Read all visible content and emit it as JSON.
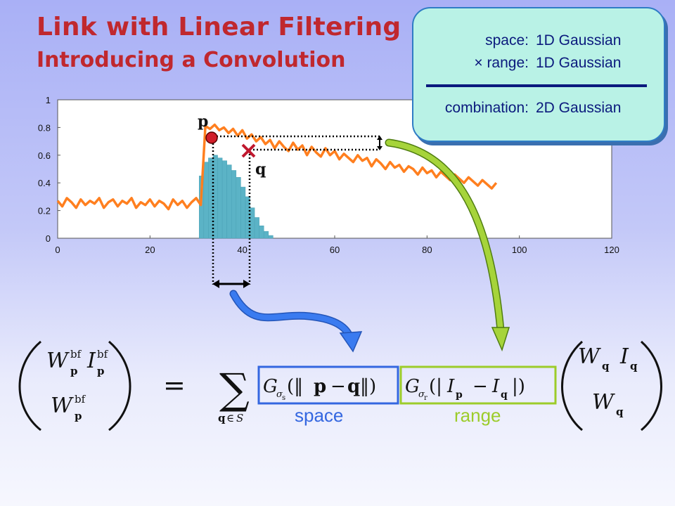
{
  "slide": {
    "title": "Link with Linear Filtering",
    "subtitle": "Introducing a Convolution"
  },
  "callout": {
    "rows": [
      {
        "label": "space:",
        "value": "1D Gaussian"
      },
      {
        "label": "× range:",
        "value": "1D Gaussian"
      },
      {
        "label": "combination:",
        "value": "2D Gaussian"
      }
    ]
  },
  "chart_data": {
    "type": "line",
    "xlim": [
      0,
      120
    ],
    "ylim": [
      0,
      1
    ],
    "x_ticks": [
      "0",
      "20",
      "40",
      "60",
      "80",
      "100",
      "120"
    ],
    "y_ticks": [
      "0",
      "0.2",
      "0.4",
      "0.6",
      "0.8",
      "1"
    ],
    "series": [
      {
        "kind": "line",
        "color": "#ff7f1f",
        "x": [
          0,
          1,
          2,
          3,
          4,
          5,
          6,
          7,
          8,
          9,
          10,
          11,
          12,
          13,
          14,
          15,
          16,
          17,
          18,
          19,
          20,
          21,
          22,
          23,
          24,
          25,
          26,
          27,
          28,
          29,
          30,
          31,
          32,
          33,
          34,
          35,
          36,
          37,
          38,
          39,
          40,
          41,
          42,
          43,
          44,
          45,
          46,
          47,
          48,
          49,
          50,
          51,
          52,
          53,
          54,
          55,
          56,
          57,
          58,
          59,
          60,
          61,
          62,
          63,
          64,
          65,
          66,
          67,
          68,
          69,
          70,
          71,
          72,
          73,
          74,
          75,
          76,
          77,
          78,
          79,
          80,
          81,
          82,
          83,
          84,
          85,
          86,
          87,
          88,
          89,
          90,
          91,
          92,
          93,
          94,
          95
        ],
        "y": [
          0.27,
          0.23,
          0.29,
          0.26,
          0.22,
          0.28,
          0.24,
          0.27,
          0.25,
          0.29,
          0.22,
          0.26,
          0.28,
          0.23,
          0.27,
          0.25,
          0.29,
          0.22,
          0.26,
          0.24,
          0.28,
          0.23,
          0.27,
          0.25,
          0.21,
          0.28,
          0.24,
          0.27,
          0.22,
          0.26,
          0.29,
          0.24,
          0.81,
          0.79,
          0.82,
          0.78,
          0.8,
          0.76,
          0.79,
          0.74,
          0.78,
          0.72,
          0.75,
          0.7,
          0.73,
          0.68,
          0.71,
          0.65,
          0.7,
          0.66,
          0.63,
          0.69,
          0.64,
          0.67,
          0.6,
          0.66,
          0.62,
          0.59,
          0.65,
          0.6,
          0.63,
          0.57,
          0.61,
          0.58,
          0.55,
          0.6,
          0.56,
          0.58,
          0.52,
          0.57,
          0.54,
          0.5,
          0.55,
          0.51,
          0.53,
          0.48,
          0.52,
          0.5,
          0.46,
          0.51,
          0.47,
          0.49,
          0.44,
          0.48,
          0.45,
          0.42,
          0.46,
          0.43,
          0.4,
          0.44,
          0.41,
          0.38,
          0.42,
          0.39,
          0.36,
          0.4
        ]
      },
      {
        "kind": "bar",
        "color": "#5bb3c6",
        "x": [
          31,
          32,
          33,
          34,
          35,
          36,
          37,
          38,
          39,
          40,
          41,
          42,
          43,
          44,
          45,
          46
        ],
        "y": [
          0.45,
          0.55,
          0.58,
          0.6,
          0.58,
          0.56,
          0.53,
          0.49,
          0.44,
          0.37,
          0.3,
          0.22,
          0.15,
          0.09,
          0.05,
          0.02
        ]
      }
    ],
    "annotations": {
      "p": {
        "label": "p",
        "x": 35,
        "y": 0.73
      },
      "q": {
        "label": "q",
        "x": 44,
        "y": 0.63
      }
    }
  },
  "formula": {
    "box_space_label": "space",
    "box_range_label": "range",
    "colors": {
      "space": "#3467e0",
      "range": "#9ccc2a",
      "p_dot": "#d11e2a",
      "q_cross": "#c0182e"
    }
  }
}
